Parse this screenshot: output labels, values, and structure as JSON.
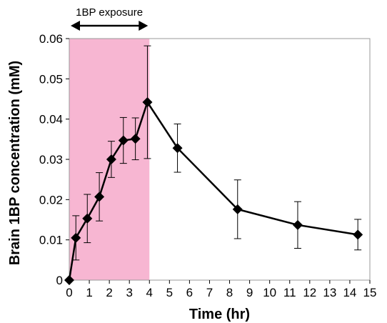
{
  "chart_data": {
    "type": "line",
    "title": "",
    "xlabel": "Time (hr)",
    "ylabel": "Brain 1BP concentration (mM)",
    "xlim": [
      0,
      15
    ],
    "ylim": [
      0,
      0.06
    ],
    "x_ticks": [
      0,
      1,
      2,
      3,
      4,
      5,
      6,
      7,
      8,
      9,
      10,
      11,
      12,
      13,
      14,
      15
    ],
    "x_tick_labels": [
      "0",
      "1",
      "2",
      "3",
      "4",
      "5",
      "6",
      "7",
      "8",
      "9",
      "10",
      "11",
      "12",
      "13",
      "14",
      "15"
    ],
    "y_ticks": [
      0,
      0.01,
      0.02,
      0.03,
      0.04,
      0.05,
      0.06
    ],
    "y_tick_labels": [
      "0",
      "0.01",
      "0.02",
      "0.03",
      "0.04",
      "0.05",
      "0.06"
    ],
    "grid": false,
    "marker": "diamond",
    "series": [
      {
        "color": "#000000",
        "points": [
          {
            "x": 0,
            "y": 0,
            "err": 0
          },
          {
            "x": 0.33,
            "y": 0.0105,
            "err": 0.0055
          },
          {
            "x": 0.9,
            "y": 0.0153,
            "err": 0.006
          },
          {
            "x": 1.5,
            "y": 0.0207,
            "err": 0.006
          },
          {
            "x": 2.1,
            "y": 0.03,
            "err": 0.0045
          },
          {
            "x": 2.7,
            "y": 0.0347,
            "err": 0.0057
          },
          {
            "x": 3.3,
            "y": 0.0351,
            "err": 0.0052
          },
          {
            "x": 3.9,
            "y": 0.0442,
            "err": 0.014
          },
          {
            "x": 5.4,
            "y": 0.0328,
            "err": 0.006
          },
          {
            "x": 8.4,
            "y": 0.0176,
            "err": 0.0073
          },
          {
            "x": 11.4,
            "y": 0.0137,
            "err": 0.0058
          },
          {
            "x": 14.4,
            "y": 0.0113,
            "err": 0.0038
          }
        ]
      }
    ],
    "shaded_region": {
      "x_start": 0,
      "x_end": 4,
      "color": "#f7b6d2"
    },
    "annotations": [
      {
        "text": "1BP exposure",
        "x_start": 0,
        "x_end": 4
      }
    ]
  }
}
